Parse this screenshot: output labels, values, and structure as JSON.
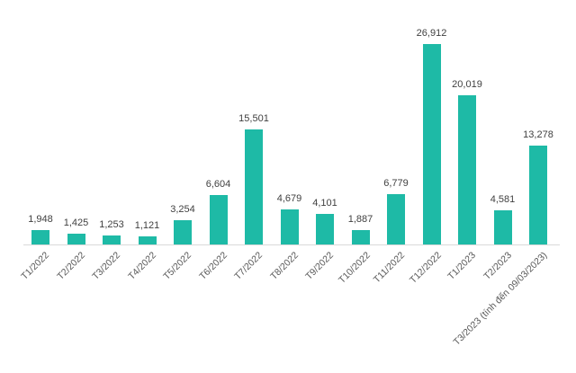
{
  "chart_data": {
    "type": "bar",
    "title": "",
    "xlabel": "",
    "ylabel": "",
    "categories": [
      "T1/2022",
      "T2/2022",
      "T3/2022",
      "T4/2022",
      "T5/2022",
      "T6/2022",
      "T7/2022",
      "T8/2022",
      "T9/2022",
      "T10/2022",
      "T11/2022",
      "T12/2022",
      "T1/2023",
      "T2/2023",
      "T3/2023 (tính đến 09/03/2023)"
    ],
    "values": [
      1948,
      1425,
      1253,
      1121,
      3254,
      6604,
      15501,
      4679,
      4101,
      1887,
      6779,
      26912,
      20019,
      4581,
      13278
    ],
    "value_labels": [
      "1,948",
      "1,425",
      "1,253",
      "1,121",
      "3,254",
      "6,604",
      "15,501",
      "4,679",
      "4,101",
      "1,887",
      "6,779",
      "26,912",
      "20,019",
      "4,581",
      "13,278"
    ],
    "ylim": [
      0,
      27000
    ],
    "grid": false,
    "legend": null,
    "bar_color": "#1ebaa6"
  }
}
